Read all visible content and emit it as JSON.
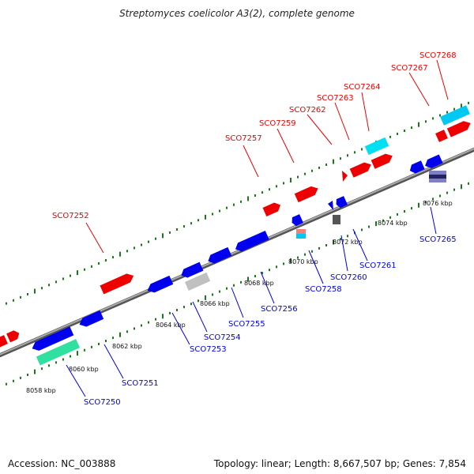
{
  "title": "Streptomyces coelicolor A3(2), complete genome",
  "footer": {
    "accession": "Accession: NC_003888",
    "summary": "Topology: linear; Length: 8,667,507 bp; Genes: 7,854"
  },
  "scale_labels": [
    "8058 kbp",
    "8060 kbp",
    "8062 kbp",
    "8064 kbp",
    "8066 kbp",
    "8068 kbp",
    "8070 kbp",
    "8072 kbp",
    "8074 kbp",
    "8076 kbp"
  ],
  "forward_genes": [
    "SCO7252",
    "SCO7257",
    "SCO7259",
    "SCO7262",
    "SCO7263",
    "SCO7264",
    "SCO7267",
    "SCO7268"
  ],
  "reverse_genes": [
    "SCO7250",
    "SCO7251",
    "SCO7253",
    "SCO7254",
    "SCO7255",
    "SCO7256",
    "SCO7258",
    "SCO7260",
    "SCO7261",
    "SCO7265"
  ],
  "colors": {
    "forward": "#ee0000",
    "reverse": "#0000ee",
    "cyan": "#00e0f0",
    "green": "#30e0a0",
    "grey": "#c0c0c0",
    "axis": "#888888",
    "ticks": "#1a7a1a"
  }
}
